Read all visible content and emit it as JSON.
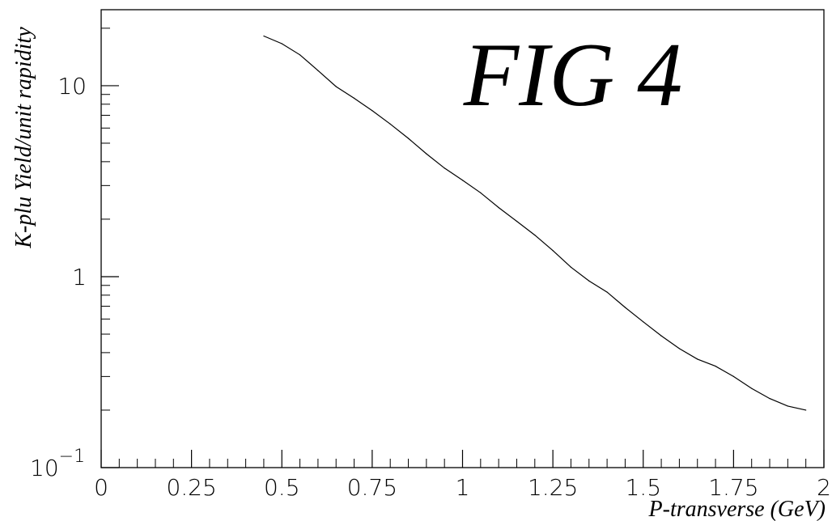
{
  "chart_data": {
    "type": "line",
    "title": "FIG 4",
    "xlabel": "P-transverse (GeV)",
    "ylabel": "K-plu Yield/unit rapidity",
    "xlim": [
      0,
      2
    ],
    "ylim": [
      0.1,
      25
    ],
    "y_scale": "log",
    "grid": false,
    "x_ticks": [
      {
        "value": 0,
        "label": "0"
      },
      {
        "value": 0.25,
        "label": "0.25"
      },
      {
        "value": 0.5,
        "label": "0.5"
      },
      {
        "value": 0.75,
        "label": "0.75"
      },
      {
        "value": 1,
        "label": "1"
      },
      {
        "value": 1.25,
        "label": "1.25"
      },
      {
        "value": 1.5,
        "label": "1.5"
      },
      {
        "value": 1.75,
        "label": "1.75"
      },
      {
        "value": 2,
        "label": "2"
      }
    ],
    "y_major_ticks": [
      {
        "value": 10,
        "label": "10"
      },
      {
        "value": 1,
        "label": "1"
      },
      {
        "value": 0.1,
        "label_base": "10",
        "label_exp": "−1"
      }
    ],
    "series": [
      {
        "x": [
          0.45,
          0.5,
          0.55,
          0.6,
          0.65,
          0.7,
          0.75,
          0.8,
          0.85,
          0.9,
          0.95,
          1.0,
          1.05,
          1.1,
          1.15,
          1.2,
          1.25,
          1.3,
          1.35,
          1.4,
          1.45,
          1.5,
          1.55,
          1.6,
          1.65,
          1.7,
          1.75,
          1.8,
          1.85,
          1.9,
          1.95
        ],
        "y": [
          18.2,
          16.6,
          14.5,
          12.0,
          9.9,
          8.6,
          7.4,
          6.3,
          5.3,
          4.4,
          3.7,
          3.2,
          2.75,
          2.3,
          1.95,
          1.65,
          1.37,
          1.12,
          0.95,
          0.83,
          0.69,
          0.58,
          0.49,
          0.42,
          0.37,
          0.34,
          0.3,
          0.26,
          0.23,
          0.21,
          0.2
        ]
      }
    ]
  }
}
